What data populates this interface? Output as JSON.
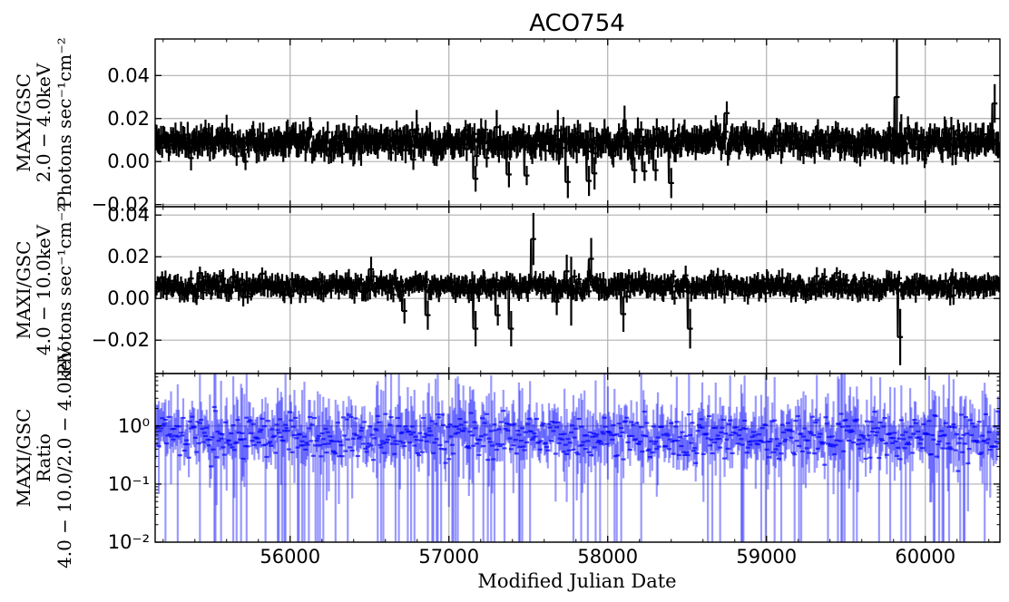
{
  "chart_data": {
    "title": "ACO754",
    "xlabel": "Modified Julian Date",
    "xlim": [
      55150,
      60470
    ],
    "x_ticks": [
      56000,
      57000,
      58000,
      59000,
      60000
    ],
    "x_tick_labels": [
      "56000",
      "57000",
      "58000",
      "59000",
      "60000"
    ],
    "grid": true,
    "panels": [
      {
        "type": "errorbar",
        "ylabel_lines": [
          "MAXI/GSC",
          "2.0 − 4.0keV",
          "Photons sec⁻¹cm⁻²"
        ],
        "ylim": [
          -0.021,
          0.057
        ],
        "yscale": "linear",
        "y_ticks": [
          -0.02,
          0.0,
          0.02,
          0.04
        ],
        "y_tick_labels": [
          "−0.02",
          "0.00",
          "0.02",
          "0.04"
        ],
        "color": "#000000",
        "baseline": 0.009,
        "noise_halfwidth": 0.008,
        "bin_days": 7,
        "notable_points": [
          {
            "x": 55720,
            "lo": -0.004,
            "hi": 0.004
          },
          {
            "x": 56450,
            "lo": -0.002,
            "hi": 0.01
          },
          {
            "x": 56800,
            "lo": 0.006,
            "hi": 0.024
          },
          {
            "x": 57170,
            "lo": -0.014,
            "hi": -0.002
          },
          {
            "x": 57300,
            "lo": 0.008,
            "hi": 0.024
          },
          {
            "x": 57380,
            "lo": -0.012,
            "hi": 0.0
          },
          {
            "x": 57490,
            "lo": -0.011,
            "hi": -0.002
          },
          {
            "x": 57690,
            "lo": 0.005,
            "hi": 0.024
          },
          {
            "x": 57750,
            "lo": -0.017,
            "hi": -0.002
          },
          {
            "x": 57880,
            "lo": -0.016,
            "hi": -0.002
          },
          {
            "x": 57920,
            "lo": -0.013,
            "hi": 0.002
          },
          {
            "x": 58110,
            "lo": 0.004,
            "hi": 0.026
          },
          {
            "x": 58170,
            "lo": -0.01,
            "hi": 0.002
          },
          {
            "x": 58230,
            "lo": -0.009,
            "hi": 0.0
          },
          {
            "x": 58300,
            "lo": -0.009,
            "hi": 0.001
          },
          {
            "x": 58400,
            "lo": -0.017,
            "hi": -0.003
          },
          {
            "x": 58750,
            "lo": 0.017,
            "hi": 0.028
          },
          {
            "x": 59820,
            "lo": 0.003,
            "hi": 0.057
          },
          {
            "x": 59850,
            "lo": 0.002,
            "hi": 0.022
          },
          {
            "x": 60000,
            "lo": -0.003,
            "hi": 0.005
          },
          {
            "x": 60440,
            "lo": 0.018,
            "hi": 0.036
          }
        ]
      },
      {
        "type": "errorbar",
        "ylabel_lines": [
          "MAXI/GSC",
          "4.0 − 10.0keV",
          "Photons sec⁻¹cm⁻²"
        ],
        "ylim": [
          -0.036,
          0.044
        ],
        "yscale": "linear",
        "y_ticks": [
          -0.02,
          0.0,
          0.02,
          0.04
        ],
        "y_tick_labels": [
          "−0.02",
          "0.00",
          "0.02",
          "0.04"
        ],
        "color": "#000000",
        "baseline": 0.006,
        "noise_halfwidth": 0.006,
        "bin_days": 7,
        "notable_points": [
          {
            "x": 56510,
            "lo": 0.008,
            "hi": 0.02
          },
          {
            "x": 56720,
            "lo": -0.012,
            "hi": 0.0
          },
          {
            "x": 56870,
            "lo": -0.015,
            "hi": -0.001
          },
          {
            "x": 57170,
            "lo": -0.023,
            "hi": -0.006
          },
          {
            "x": 57310,
            "lo": -0.013,
            "hi": -0.003
          },
          {
            "x": 57390,
            "lo": -0.023,
            "hi": -0.006
          },
          {
            "x": 57530,
            "lo": 0.016,
            "hi": 0.041
          },
          {
            "x": 57680,
            "lo": -0.008,
            "hi": 0.005
          },
          {
            "x": 57740,
            "lo": 0.005,
            "hi": 0.021
          },
          {
            "x": 57770,
            "lo": -0.013,
            "hi": 0.02
          },
          {
            "x": 57900,
            "lo": 0.009,
            "hi": 0.029
          },
          {
            "x": 58100,
            "lo": -0.016,
            "hi": 0.001
          },
          {
            "x": 58520,
            "lo": -0.024,
            "hi": -0.005
          },
          {
            "x": 59840,
            "lo": -0.032,
            "hi": -0.005
          }
        ]
      },
      {
        "type": "errorbar",
        "ylabel_lines": [
          "MAXI/GSC",
          "Ratio",
          "4.0 − 10.0/2.0 − 4.0keV"
        ],
        "ylim": [
          0.01,
          8.0
        ],
        "yscale": "log",
        "y_ticks": [
          0.01,
          0.1,
          1.0
        ],
        "y_tick_labels": [
          "10⁻²",
          "10⁻¹",
          "10⁰"
        ],
        "color": "#0000ff",
        "alpha": 0.4,
        "baseline": 0.65,
        "bin_days": 7
      }
    ]
  }
}
